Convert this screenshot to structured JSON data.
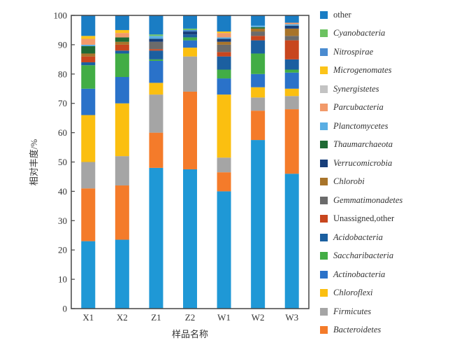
{
  "chart_data": {
    "type": "bar",
    "stacked": true,
    "title": "",
    "xlabel": "样品名称",
    "ylabel": "相对丰度/%",
    "ylim": [
      0,
      100
    ],
    "yticks": [
      0,
      10,
      20,
      30,
      40,
      50,
      60,
      70,
      80,
      90,
      100
    ],
    "categories": [
      "X1",
      "X2",
      "Z1",
      "Z2",
      "W1",
      "W2",
      "W3"
    ],
    "legend_position": "right",
    "series": [
      {
        "name": "",
        "color": "#1f98d6",
        "values": [
          23.0,
          23.5,
          48.0,
          47.5,
          40.0,
          57.5,
          46.0
        ]
      },
      {
        "name": "Bacteroidetes",
        "color": "#f47b2a",
        "values": [
          18.0,
          18.5,
          12.0,
          26.5,
          6.5,
          10.0,
          22.0
        ]
      },
      {
        "name": "Firmicutes",
        "color": "#a5a5a5",
        "values": [
          9.0,
          10.0,
          13.0,
          12.0,
          5.0,
          4.5,
          4.5
        ]
      },
      {
        "name": "Chloroflexi",
        "color": "#fbbf10",
        "values": [
          16.0,
          18.0,
          4.0,
          3.0,
          21.5,
          3.5,
          2.5
        ]
      },
      {
        "name": "Actinobacteria",
        "color": "#2a72c9",
        "values": [
          9.0,
          9.0,
          7.5,
          2.5,
          5.5,
          4.5,
          5.5
        ]
      },
      {
        "name": "Saccharibacteria",
        "color": "#42ad45",
        "values": [
          8.0,
          8.0,
          0.5,
          1.0,
          3.0,
          7.0,
          1.0
        ]
      },
      {
        "name": "Acidobacteria",
        "color": "#1b5fa0",
        "values": [
          1.0,
          1.0,
          3.0,
          1.0,
          4.5,
          4.5,
          3.5
        ]
      },
      {
        "name": "Unassigned,other",
        "color": "#c8461e",
        "values": [
          2.0,
          2.0,
          0.5,
          0.0,
          1.5,
          1.5,
          6.5
        ]
      },
      {
        "name": "Gemmatimonadetes",
        "color": "#6b6b6b",
        "values": [
          0.0,
          0.0,
          2.5,
          0.0,
          2.5,
          1.5,
          1.5
        ]
      },
      {
        "name": "Chlorobi",
        "color": "#a8742a",
        "values": [
          1.0,
          1.0,
          0.0,
          0.0,
          1.0,
          1.0,
          2.5
        ]
      },
      {
        "name": "Verrucomicrobia",
        "color": "#183f7a",
        "values": [
          0.0,
          0.0,
          1.0,
          1.0,
          1.0,
          0.0,
          1.0
        ]
      },
      {
        "name": "Thaumarchaeota",
        "color": "#1f6a34",
        "values": [
          2.5,
          1.5,
          0.0,
          0.0,
          0.0,
          0.5,
          0.0
        ]
      },
      {
        "name": "Planctomycetes",
        "color": "#5aaee3",
        "values": [
          0.5,
          0.0,
          1.0,
          0.0,
          0.5,
          0.5,
          0.5
        ]
      },
      {
        "name": "Parcubacteria",
        "color": "#f29a6a",
        "values": [
          2.0,
          1.5,
          0.0,
          0.0,
          1.5,
          0.0,
          0.5
        ]
      },
      {
        "name": "Synergistetes",
        "color": "#c3c3c3",
        "values": [
          0.0,
          0.0,
          0.0,
          0.0,
          0.0,
          0.0,
          0.0
        ]
      },
      {
        "name": "Microgenomates",
        "color": "#fcc419",
        "values": [
          1.0,
          1.0,
          0.0,
          0.0,
          0.5,
          0.0,
          0.0
        ]
      },
      {
        "name": "Nitrospirae",
        "color": "#4a8bd0",
        "values": [
          0.0,
          0.0,
          0.0,
          0.5,
          0.0,
          0.0,
          0.0
        ]
      },
      {
        "name": "Cyanobacteria",
        "color": "#6cc261",
        "values": [
          0.0,
          0.0,
          0.5,
          0.5,
          0.0,
          0.0,
          0.0
        ]
      },
      {
        "name": "other",
        "color": "#1a7dc4",
        "values": [
          7.0,
          5.0,
          6.5,
          4.5,
          5.5,
          3.5,
          2.5
        ]
      }
    ],
    "legend": [
      {
        "name": "other",
        "color": "#1a7dc4",
        "italic": false
      },
      {
        "name": "Cyanobacteria",
        "color": "#6cc261",
        "italic": true
      },
      {
        "name": "Nitrospirae",
        "color": "#4a8bd0",
        "italic": true
      },
      {
        "name": "Microgenomates",
        "color": "#fcc419",
        "italic": true
      },
      {
        "name": "Synergistetes",
        "color": "#c3c3c3",
        "italic": true
      },
      {
        "name": "Parcubacteria",
        "color": "#f29a6a",
        "italic": true
      },
      {
        "name": "Planctomycetes",
        "color": "#5aaee3",
        "italic": true
      },
      {
        "name": "Thaumarchaeota",
        "color": "#1f6a34",
        "italic": true
      },
      {
        "name": "Verrucomicrobia",
        "color": "#183f7a",
        "italic": true
      },
      {
        "name": "Chlorobi",
        "color": "#a8742a",
        "italic": true
      },
      {
        "name": "Gemmatimonadetes",
        "color": "#6b6b6b",
        "italic": true
      },
      {
        "name": "Unassigned,other",
        "color": "#c8461e",
        "italic": false
      },
      {
        "name": "Acidobacteria",
        "color": "#1b5fa0",
        "italic": true
      },
      {
        "name": "Saccharibacteria",
        "color": "#42ad45",
        "italic": true
      },
      {
        "name": "Actinobacteria",
        "color": "#2a72c9",
        "italic": true
      },
      {
        "name": "Chloroflexi",
        "color": "#fbbf10",
        "italic": true
      },
      {
        "name": "Firmicutes",
        "color": "#a5a5a5",
        "italic": true
      },
      {
        "name": "Bacteroidetes",
        "color": "#f47b2a",
        "italic": true
      }
    ]
  }
}
